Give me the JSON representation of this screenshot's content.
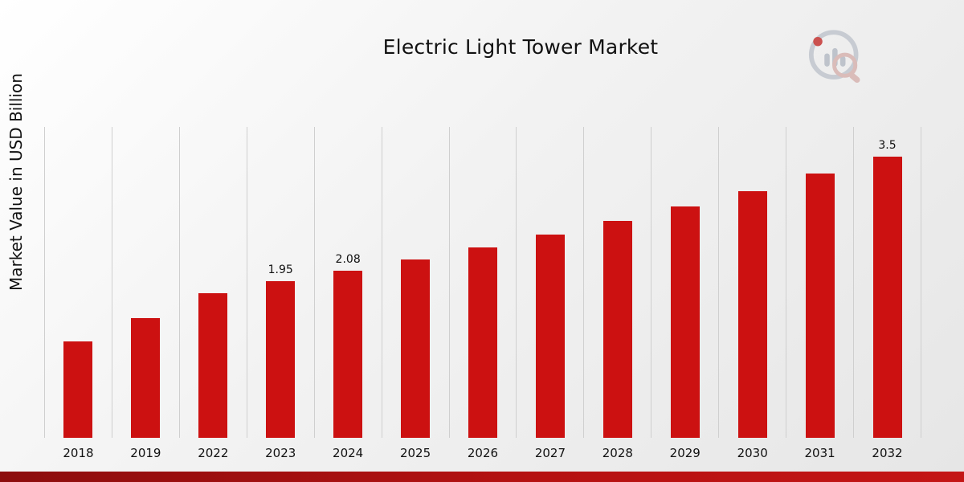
{
  "chart_data": {
    "type": "bar",
    "title": "Electric Light Tower Market",
    "xlabel": "",
    "ylabel": "Market Value in USD Billion",
    "categories": [
      "2018",
      "2019",
      "2022",
      "2023",
      "2024",
      "2025",
      "2026",
      "2027",
      "2028",
      "2029",
      "2030",
      "2031",
      "2032"
    ],
    "values": [
      1.2,
      1.49,
      1.8,
      1.95,
      2.08,
      2.22,
      2.37,
      2.53,
      2.7,
      2.88,
      3.07,
      3.29,
      3.5
    ],
    "labeled_points": {
      "2023": "1.95",
      "2024": "2.08",
      "2032": "3.5"
    },
    "bar_color": "#cc1111",
    "ylim": [
      0,
      3.87
    ],
    "grid": "vertical-only",
    "legend": "none"
  },
  "branding": {
    "logo_icon": "bar-chart-magnifier-logo",
    "accent_color": "#b51111",
    "logo_gray": "#c3c8cf"
  },
  "footer": {
    "strip_color": "#8c0d0d"
  }
}
